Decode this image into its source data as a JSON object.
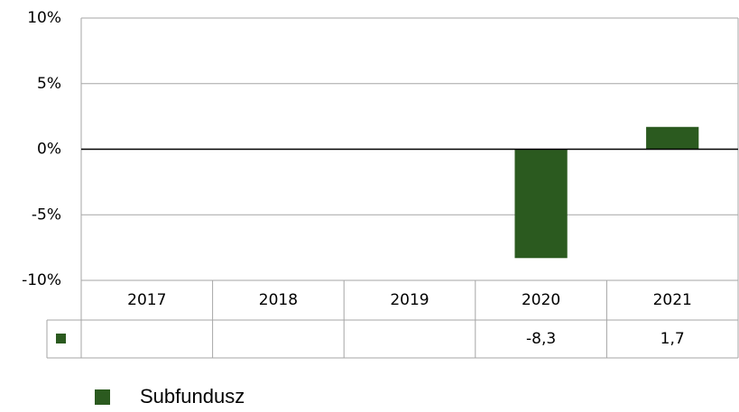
{
  "chart_data": {
    "type": "bar",
    "categories": [
      "2017",
      "2018",
      "2019",
      "2020",
      "2021"
    ],
    "series": [
      {
        "name": "Subfundusz",
        "color": "#2b5a1f",
        "values": [
          null,
          null,
          null,
          -8.3,
          1.7
        ],
        "value_labels": [
          null,
          null,
          null,
          "-8,3",
          "1,7"
        ]
      }
    ],
    "ylim": [
      -10,
      10
    ],
    "yticks": [
      {
        "value": -10,
        "label": "-10%"
      },
      {
        "value": -5,
        "label": "-5%"
      },
      {
        "value": 0,
        "label": "0%"
      },
      {
        "value": 5,
        "label": "5%"
      },
      {
        "value": 10,
        "label": "10%"
      }
    ],
    "grid": true
  }
}
